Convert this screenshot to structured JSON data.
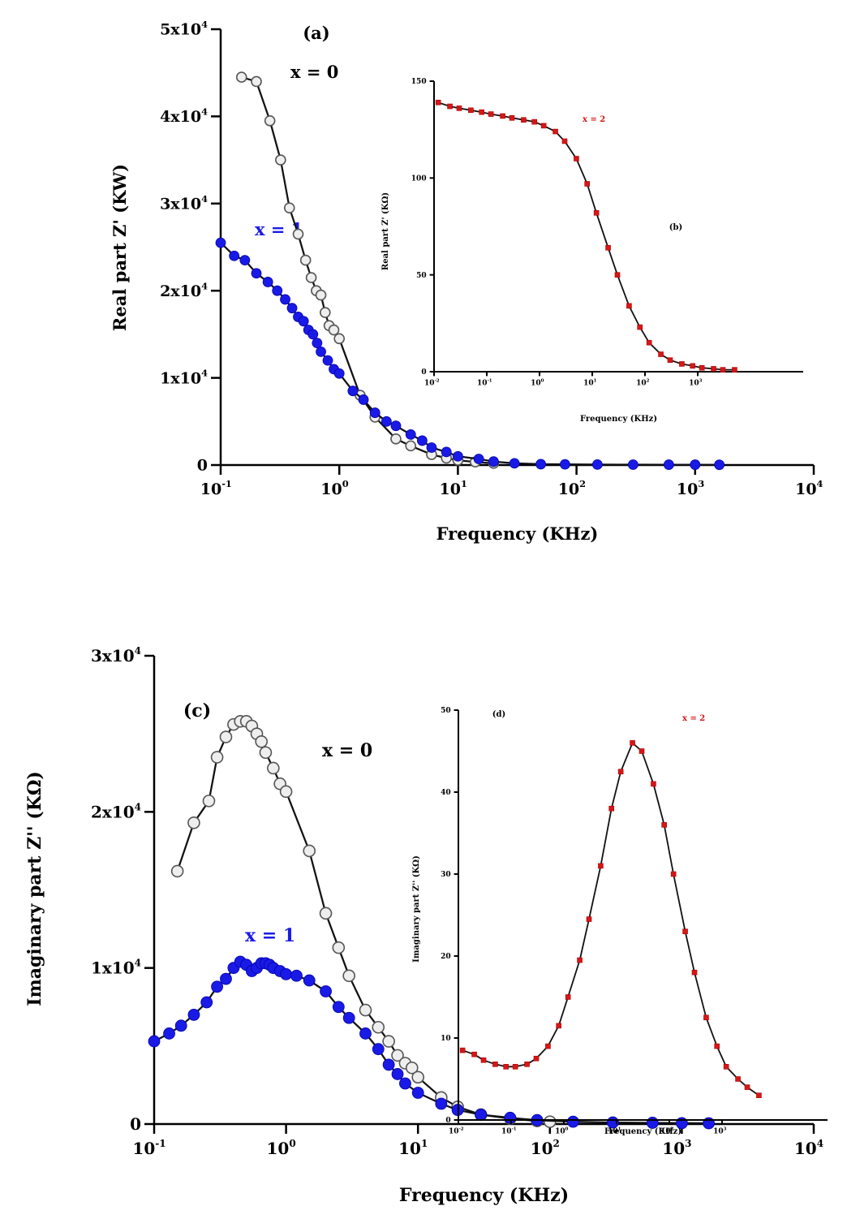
{
  "chart_data": [
    {
      "panel": "(a)",
      "type": "scatter",
      "xlabel": "Frequency (KHz)",
      "ylabel": "Real part Z' (KW)",
      "xscale": "log",
      "xlim": [
        0.1,
        10000
      ],
      "ylim": [
        0,
        50000
      ],
      "xticks": [
        {
          "value": 0.1,
          "label": "10",
          "exp": "-1"
        },
        {
          "value": 1,
          "label": "10",
          "exp": "0"
        },
        {
          "value": 10,
          "label": "10",
          "exp": "1"
        },
        {
          "value": 100,
          "label": "10",
          "exp": "2"
        },
        {
          "value": 1000,
          "label": "10",
          "exp": "3"
        },
        {
          "value": 10000,
          "label": "10",
          "exp": "4"
        }
      ],
      "yticks": [
        {
          "value": 0,
          "label": "0",
          "exp": ""
        },
        {
          "value": 10000,
          "label": "1x10",
          "exp": "4"
        },
        {
          "value": 20000,
          "label": "2x10",
          "exp": "4"
        },
        {
          "value": 30000,
          "label": "3x10",
          "exp": "4"
        },
        {
          "value": 40000,
          "label": "4x10",
          "exp": "4"
        },
        {
          "value": 50000,
          "label": "5x10",
          "exp": "4"
        }
      ],
      "series": [
        {
          "name": "x = 0",
          "marker": "open-circle",
          "color": "#a8a8a8",
          "x": [
            0.15,
            0.2,
            0.26,
            0.32,
            0.38,
            0.45,
            0.52,
            0.58,
            0.64,
            0.7,
            0.76,
            0.82,
            0.9,
            1.0,
            1.5,
            2.0,
            3.0,
            4.0,
            6.0,
            8.0,
            10.0,
            14.0,
            20.0
          ],
          "y": [
            44500,
            44000,
            39500,
            35000,
            29500,
            26500,
            23500,
            21500,
            20000,
            19500,
            17500,
            16000,
            15500,
            14500,
            8000,
            5500,
            3000,
            2200,
            1200,
            800,
            550,
            350,
            200
          ]
        },
        {
          "name": "x = 1",
          "marker": "filled-circle",
          "color": "#1a1ae6",
          "x": [
            0.1,
            0.13,
            0.16,
            0.2,
            0.25,
            0.3,
            0.35,
            0.4,
            0.45,
            0.5,
            0.55,
            0.6,
            0.65,
            0.7,
            0.8,
            0.9,
            1.0,
            1.3,
            1.6,
            2.0,
            2.5,
            3.0,
            4.0,
            5.0,
            6.0,
            8.0,
            10.0,
            15.0,
            20.0,
            30.0,
            50.0,
            80.0,
            150.0,
            300.0,
            600.0,
            1000.0,
            1600.0
          ],
          "y": [
            25500,
            24000,
            23500,
            22000,
            21000,
            20000,
            19000,
            18000,
            17000,
            16500,
            15500,
            15000,
            14000,
            13000,
            12000,
            11000,
            10500,
            8500,
            7500,
            6000,
            5000,
            4500,
            3500,
            2800,
            2000,
            1500,
            1000,
            700,
            400,
            200,
            100,
            80,
            60,
            50,
            40,
            40,
            30
          ]
        }
      ],
      "annotations": [
        "(a)",
        "x = 0",
        "x = 1"
      ]
    },
    {
      "panel": "(b)",
      "type": "scatter",
      "xlabel": "Frequency (KHz)",
      "ylabel": "Real part Z' (KΩ)",
      "xscale": "log",
      "xlim": [
        0.01,
        100000
      ],
      "ylim": [
        0,
        150
      ],
      "xticks": [
        {
          "value": 0.01,
          "label": "10",
          "exp": "-2"
        },
        {
          "value": 0.1,
          "label": "10",
          "exp": "-1"
        },
        {
          "value": 1,
          "label": "10",
          "exp": "0"
        },
        {
          "value": 10,
          "label": "10",
          "exp": "1"
        },
        {
          "value": 100,
          "label": "10",
          "exp": "2"
        },
        {
          "value": 1000,
          "label": "10",
          "exp": "3"
        }
      ],
      "yticks": [
        {
          "value": 0,
          "label": "0",
          "exp": ""
        },
        {
          "value": 50,
          "label": "50",
          "exp": ""
        },
        {
          "value": 100,
          "label": "100",
          "exp": ""
        },
        {
          "value": 150,
          "label": "150",
          "exp": ""
        }
      ],
      "series": [
        {
          "name": "x = 2",
          "marker": "filled-square",
          "color": "#d41818",
          "x": [
            0.012,
            0.02,
            0.03,
            0.05,
            0.08,
            0.12,
            0.2,
            0.3,
            0.5,
            0.8,
            1.2,
            2.0,
            3.0,
            5.0,
            8.0,
            12.0,
            20.0,
            30.0,
            50.0,
            80.0,
            120.0,
            200.0,
            300.0,
            500.0,
            800.0,
            1200.0,
            2000.0,
            3000.0,
            5000.0
          ],
          "y": [
            139,
            137,
            136,
            135,
            134,
            133,
            132,
            131,
            130,
            129,
            127,
            124,
            119,
            110,
            97,
            82,
            64,
            50,
            34,
            23,
            15,
            9,
            6,
            4,
            3,
            2,
            1.5,
            1,
            1
          ]
        }
      ],
      "annotations": [
        "(b)",
        "x = 2"
      ]
    },
    {
      "panel": "(c)",
      "type": "scatter",
      "xlabel": "Frequency (KHz)",
      "ylabel": "Imaginary part Z'' (KΩ)",
      "xscale": "log",
      "xlim": [
        0.1,
        10000
      ],
      "ylim": [
        0,
        30000
      ],
      "xticks": [
        {
          "value": 0.1,
          "label": "10",
          "exp": "-1"
        },
        {
          "value": 1,
          "label": "10",
          "exp": "0"
        },
        {
          "value": 10,
          "label": "10",
          "exp": "1"
        },
        {
          "value": 100,
          "label": "10",
          "exp": "2"
        },
        {
          "value": 1000,
          "label": "10",
          "exp": "3"
        },
        {
          "value": 10000,
          "label": "10",
          "exp": "4"
        }
      ],
      "yticks": [
        {
          "value": 0,
          "label": "0",
          "exp": ""
        },
        {
          "value": 10000,
          "label": "1x10",
          "exp": "4"
        },
        {
          "value": 20000,
          "label": "2x10",
          "exp": "4"
        },
        {
          "value": 30000,
          "label": "3x10",
          "exp": "4"
        }
      ],
      "series": [
        {
          "name": "x = 0",
          "marker": "open-circle",
          "color": "#a8a8a8",
          "x": [
            0.15,
            0.2,
            0.26,
            0.3,
            0.35,
            0.4,
            0.45,
            0.5,
            0.55,
            0.6,
            0.65,
            0.7,
            0.8,
            0.9,
            1.0,
            1.5,
            2.0,
            2.5,
            3.0,
            4.0,
            5.0,
            6.0,
            7.0,
            8.0,
            9.0,
            10.0,
            15.0,
            20.0,
            30.0,
            50.0,
            80.0,
            100.0
          ],
          "y": [
            16200,
            19300,
            20700,
            23500,
            24800,
            25600,
            25800,
            25800,
            25500,
            25000,
            24500,
            23800,
            22800,
            21800,
            21300,
            17500,
            13500,
            11300,
            9500,
            7300,
            6200,
            5300,
            4400,
            3900,
            3600,
            3000,
            1700,
            1100,
            600,
            350,
            200,
            150
          ]
        },
        {
          "name": "x = 1",
          "marker": "filled-circle",
          "color": "#1a1ae6",
          "x": [
            0.1,
            0.13,
            0.16,
            0.2,
            0.25,
            0.3,
            0.35,
            0.4,
            0.45,
            0.5,
            0.55,
            0.6,
            0.65,
            0.7,
            0.75,
            0.8,
            0.9,
            1.0,
            1.2,
            1.5,
            2.0,
            2.5,
            3.0,
            4.0,
            5.0,
            6.0,
            7.0,
            8.0,
            10.0,
            15.0,
            20.0,
            30.0,
            50.0,
            80.0,
            150.0,
            300.0,
            600.0,
            1000.0,
            1600.0
          ],
          "y": [
            5300,
            5800,
            6300,
            7000,
            7800,
            8800,
            9300,
            10000,
            10400,
            10200,
            9800,
            10000,
            10300,
            10300,
            10200,
            10000,
            9800,
            9600,
            9500,
            9200,
            8500,
            7500,
            6800,
            5800,
            4800,
            3800,
            3200,
            2600,
            2000,
            1300,
            900,
            600,
            400,
            250,
            150,
            100,
            80,
            60,
            50
          ]
        }
      ],
      "annotations": [
        "(c)",
        "x = 0",
        "x = 1"
      ]
    },
    {
      "panel": "(d)",
      "type": "scatter",
      "xlabel": "Frequency (KHz)",
      "ylabel": "Imaginary part Z'' (KΩ)",
      "xscale": "log",
      "xlim": [
        0.01,
        100000
      ],
      "ylim": [
        0,
        50
      ],
      "xticks": [
        {
          "value": 0.01,
          "label": "10",
          "exp": "-2"
        },
        {
          "value": 0.1,
          "label": "10",
          "exp": "-1"
        },
        {
          "value": 1,
          "label": "10",
          "exp": "0"
        },
        {
          "value": 10,
          "label": "10",
          "exp": "1"
        },
        {
          "value": 100,
          "label": "10",
          "exp": "2"
        },
        {
          "value": 1000,
          "label": "10",
          "exp": "3"
        }
      ],
      "yticks": [
        {
          "value": 0,
          "label": "0",
          "exp": ""
        },
        {
          "value": 10,
          "label": "10",
          "exp": ""
        },
        {
          "value": 20,
          "label": "20",
          "exp": ""
        },
        {
          "value": 30,
          "label": "30",
          "exp": ""
        },
        {
          "value": 40,
          "label": "40",
          "exp": ""
        },
        {
          "value": 50,
          "label": "50",
          "exp": ""
        }
      ],
      "series": [
        {
          "name": "x = 2",
          "marker": "filled-square",
          "color": "#d41818",
          "x": [
            0.012,
            0.02,
            0.03,
            0.05,
            0.08,
            0.12,
            0.2,
            0.3,
            0.5,
            0.8,
            1.2,
            2.0,
            3.0,
            5.0,
            8.0,
            12.0,
            20.0,
            30.0,
            50.0,
            80.0,
            120.0,
            200.0,
            300.0,
            500.0,
            800.0,
            1200.0,
            2000.0,
            3000.0,
            5000.0
          ],
          "y": [
            8.5,
            8.0,
            7.3,
            6.8,
            6.5,
            6.5,
            6.8,
            7.5,
            9.0,
            11.5,
            15.0,
            19.5,
            24.5,
            31.0,
            38.0,
            42.5,
            46.0,
            45.0,
            41.0,
            36.0,
            30.0,
            23.0,
            18.0,
            12.5,
            9.0,
            6.5,
            5.0,
            4.0,
            3.0
          ]
        }
      ],
      "annotations": [
        "(d)",
        "x = 2"
      ]
    }
  ]
}
